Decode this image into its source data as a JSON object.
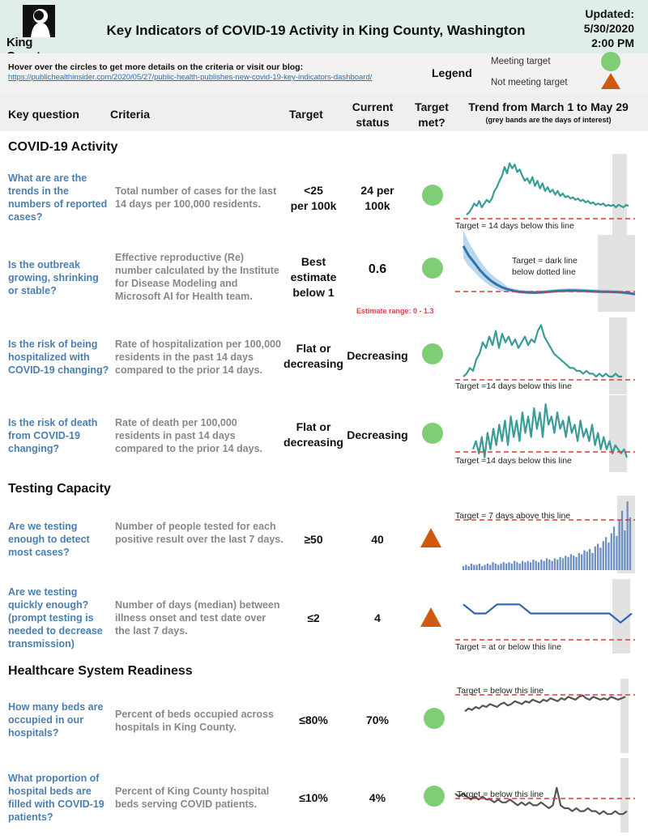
{
  "header": {
    "logo_text": "King County",
    "title": "Key Indicators of COVID-19 Activity in King County, Washington",
    "updated_label": "Updated:",
    "updated_date": "5/30/2020",
    "updated_time": "2:00 PM"
  },
  "info": {
    "hover_text": "Hover over the circles to get more details on the criteria or visit our blog:",
    "blog_link": "https://publichealthinsider.com/2020/05/27/public-health-publishes-new-covid-19-key-indicators-dashboard/"
  },
  "legend": {
    "label": "Legend",
    "meeting": "Meeting target",
    "not_meeting": "Not meeting target",
    "colors": {
      "meeting": "#7fce76",
      "not_meeting": "#cf5a0f"
    }
  },
  "columns": {
    "question": "Key question",
    "criteria": "Criteria",
    "target": "Target",
    "current_1": "Current",
    "current_2": "status",
    "met_1": "Target",
    "met_2": "met?",
    "trend_1": "Trend from March 1 to May 29",
    "trend_2": "(grey bands are the days of interest)"
  },
  "sections": {
    "covid": "COVID-19 Activity",
    "testing": "Testing Capacity",
    "healthcare": "Healthcare System Readiness"
  },
  "rows": [
    {
      "question": "What are are the trends in the numbers of reported cases?",
      "criteria": "Total number of cases for the last 14 days per 100,000 residents.",
      "target_1": "<25",
      "target_2": "per 100k",
      "status_1": "24 per",
      "status_2": "100k",
      "met": true,
      "note": "Target = 14 days below this line",
      "series": [
        3,
        5,
        8,
        12,
        10,
        14,
        9,
        12,
        15,
        13,
        16,
        22,
        25,
        30,
        34,
        41,
        36,
        44,
        40,
        43,
        37,
        39,
        34,
        30,
        32,
        28,
        33,
        26,
        30,
        24,
        28,
        22,
        25,
        21,
        23,
        19,
        22,
        18,
        20,
        17,
        18,
        16,
        17,
        15,
        16,
        14,
        15,
        13,
        14,
        12,
        13,
        11,
        12,
        11,
        12,
        10,
        11,
        10,
        11,
        9,
        11,
        10,
        9,
        11,
        10
      ]
    },
    {
      "question": "Is the outbreak growing, shrinking or stable?",
      "criteria": "Effective reproductive (Re) number calculated by the Institute for Disease Modeling and Microsoft AI for Health team.",
      "target_1": "Best",
      "target_2": "estimate",
      "target_3": "below 1",
      "status_1": "0.6",
      "estimate": "Estimate range: 0 - 1.3",
      "met": true,
      "note": "Target = dark line below dotted line",
      "series": [
        2.6,
        2.2,
        1.9,
        1.6,
        1.35,
        1.15,
        1.0,
        0.88,
        0.8,
        0.74,
        0.7,
        0.68,
        0.66,
        0.66,
        0.67,
        0.69,
        0.71,
        0.73,
        0.74,
        0.75,
        0.75,
        0.74,
        0.73,
        0.72,
        0.71,
        0.7,
        0.7,
        0.69,
        0.68,
        0.66,
        0.63,
        0.6
      ]
    },
    {
      "question": "Is the risk of being hospitalized with COVID-19 changing?",
      "criteria": "Rate of hospitalization per 100,000 residents in the past 14 days compared to the prior 14 days.",
      "target_1": "Flat or",
      "target_2": "decreasing",
      "status_1": "Decreasing",
      "met": true,
      "note": "Target =14 days below this line",
      "series": [
        2,
        3,
        5,
        4,
        8,
        10,
        14,
        12,
        16,
        13,
        18,
        12,
        17,
        14,
        16,
        13,
        15,
        12,
        14,
        16,
        13,
        15,
        14,
        18,
        20,
        16,
        14,
        12,
        10,
        9,
        8,
        7,
        6,
        5,
        5,
        4,
        4,
        3,
        4,
        3,
        3,
        2,
        3,
        2,
        3,
        2,
        2,
        3,
        2,
        2
      ]
    },
    {
      "question": "Is the risk of death from COVID-19 changing?",
      "criteria": "Rate of death per 100,000 residents in past 14 days compared to the prior 14 days.",
      "target_1": "Flat or",
      "target_2": "decreasing",
      "status_1": "Decreasing",
      "met": true,
      "note": "Target =14 days below this line",
      "series": [
        3,
        5,
        2,
        6,
        1,
        7,
        3,
        8,
        4,
        9,
        5,
        10,
        4,
        11,
        6,
        10,
        5,
        12,
        7,
        11,
        6,
        13,
        8,
        12,
        6,
        14,
        9,
        11,
        7,
        12,
        8,
        10,
        6,
        11,
        7,
        9,
        5,
        10,
        6,
        8,
        5,
        9,
        4,
        7,
        3,
        6,
        3,
        5,
        2,
        4,
        3,
        2,
        3,
        1
      ]
    },
    {
      "question": "Are we testing enough to detect most cases?",
      "criteria": "Number of people tested for each positive result over the last 7 days.",
      "target_1": "≥50",
      "status_1": "40",
      "met": false,
      "note": "Target = 7 days above this line",
      "series": [
        3,
        4,
        3,
        5,
        4,
        4,
        5,
        3,
        4,
        5,
        4,
        6,
        5,
        4,
        5,
        6,
        5,
        6,
        5,
        7,
        6,
        5,
        7,
        6,
        7,
        6,
        8,
        7,
        6,
        8,
        7,
        9,
        8,
        7,
        9,
        8,
        10,
        9,
        11,
        10,
        12,
        11,
        10,
        13,
        12,
        15,
        14,
        16,
        13,
        18,
        20,
        17,
        22,
        25,
        21,
        28,
        33,
        26,
        38,
        45,
        30,
        52,
        40
      ]
    },
    {
      "question": "Are we testing quickly enough? (prompt testing is needed to decrease transmission)",
      "criteria": "Number of days (median) between illness onset and test date over the last 7 days.",
      "target_1": "≤2",
      "status_1": "4",
      "met": false,
      "note": "Target = at or below this line",
      "series": [
        5,
        4,
        4,
        5,
        5,
        5,
        4,
        4,
        4,
        4,
        4,
        4,
        4,
        4,
        3,
        4
      ]
    },
    {
      "question": "How many beds are occupied in our hospitals?",
      "criteria": "Percent of beds occupied across hospitals in King County.",
      "target_1": "≤80%",
      "status_1": "70%",
      "met": true,
      "note": "Target = below this line",
      "series": [
        62,
        64,
        63,
        65,
        64,
        66,
        65,
        67,
        66,
        65,
        67,
        68,
        66,
        67,
        69,
        68,
        67,
        69,
        68,
        70,
        69,
        68,
        70,
        69,
        71,
        70,
        69,
        71,
        70,
        72,
        71,
        70,
        72,
        73,
        71,
        70,
        72,
        71,
        70,
        71,
        70,
        72,
        71,
        70,
        71,
        72
      ]
    },
    {
      "question": "What proportion of hospital beds are filled with COVID-19 patients?",
      "criteria": "Percent of King County hospital beds serving COVID patients.",
      "target_1": "≤10%",
      "status_1": "4%",
      "met": true,
      "note": "Target = below this line",
      "series": [
        10,
        9,
        10,
        9,
        8,
        9,
        8,
        9,
        8,
        8,
        7,
        8,
        7,
        7,
        8,
        7,
        6,
        7,
        6,
        7,
        6,
        6,
        7,
        6,
        5,
        6,
        12,
        6,
        5,
        5,
        4,
        5,
        4,
        4,
        5,
        4,
        4,
        3,
        4,
        3,
        3,
        4,
        3,
        3,
        4
      ]
    }
  ]
}
